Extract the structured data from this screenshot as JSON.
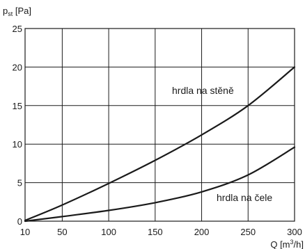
{
  "chart_data": {
    "type": "line",
    "ylabel": {
      "main": "p",
      "sub": "st",
      "unit": " [Pa]"
    },
    "xlabel": {
      "main": "Q [m",
      "sup": "3",
      "tail": "/h]"
    },
    "xlim": [
      10,
      300
    ],
    "ylim": [
      0,
      25
    ],
    "xticks": [
      10,
      50,
      100,
      150,
      200,
      250,
      300
    ],
    "yticks": [
      0,
      5,
      10,
      15,
      20,
      25
    ],
    "grid": true,
    "series": [
      {
        "name": "hrdla na stěně",
        "x": [
          10,
          50,
          100,
          150,
          200,
          250,
          300
        ],
        "y": [
          0.1,
          2.1,
          4.9,
          7.9,
          11.2,
          15.0,
          20.0
        ]
      },
      {
        "name": "hrdla na čele",
        "x": [
          10,
          50,
          100,
          150,
          200,
          250,
          300
        ],
        "y": [
          0.0,
          0.6,
          1.4,
          2.4,
          3.8,
          6.0,
          9.6
        ]
      }
    ]
  }
}
